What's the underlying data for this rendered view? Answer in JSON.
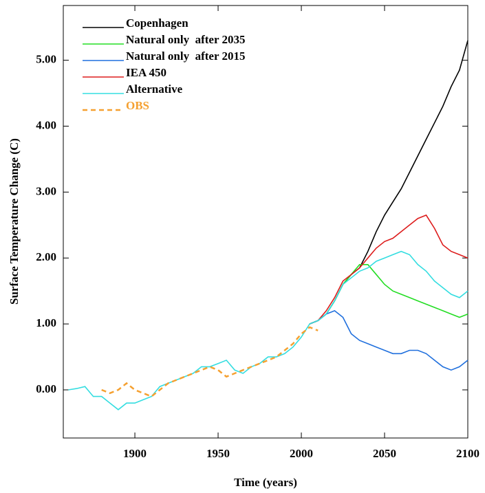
{
  "chart_data": {
    "type": "line",
    "x_label": "Time (years)",
    "y_label": "Surface Temperature Change (C)",
    "xlim": [
      1857,
      2100
    ],
    "ylim": [
      -0.73,
      5.83
    ],
    "xticks": [
      1900,
      1950,
      2000,
      2050,
      2100
    ],
    "yticks": [
      {
        "value": 0,
        "label": "0.00"
      },
      {
        "value": 1,
        "label": "1.00"
      },
      {
        "value": 2,
        "label": "2.00"
      },
      {
        "value": 3,
        "label": "3.00"
      },
      {
        "value": 4,
        "label": "4.00"
      },
      {
        "value": 5,
        "label": "5.00"
      }
    ],
    "x": [
      1860,
      1865,
      1870,
      1875,
      1880,
      1885,
      1890,
      1895,
      1900,
      1905,
      1910,
      1915,
      1920,
      1925,
      1930,
      1935,
      1940,
      1945,
      1950,
      1955,
      1960,
      1965,
      1970,
      1975,
      1980,
      1985,
      1990,
      1995,
      2000,
      2005,
      2010,
      2015,
      2020,
      2025,
      2030,
      2035,
      2040,
      2045,
      2050,
      2055,
      2060,
      2065,
      2070,
      2075,
      2080,
      2085,
      2090,
      2095,
      2100
    ],
    "series": [
      {
        "name": "Copenhagen",
        "color": "#000000",
        "dash": "solid",
        "values": [
          null,
          null,
          null,
          null,
          null,
          null,
          null,
          null,
          null,
          null,
          null,
          null,
          null,
          null,
          null,
          null,
          null,
          null,
          null,
          null,
          null,
          null,
          null,
          null,
          null,
          null,
          null,
          null,
          null,
          1.0,
          1.05,
          1.15,
          1.35,
          1.6,
          1.75,
          1.85,
          2.1,
          2.4,
          2.65,
          2.85,
          3.05,
          3.3,
          3.55,
          3.8,
          4.05,
          4.3,
          4.6,
          4.85,
          5.3
        ]
      },
      {
        "name": "Natural only  after 2035",
        "color": "#22dd22",
        "dash": "solid",
        "values": [
          null,
          null,
          null,
          null,
          null,
          null,
          null,
          null,
          null,
          null,
          null,
          null,
          null,
          null,
          null,
          null,
          null,
          null,
          null,
          null,
          null,
          null,
          null,
          null,
          null,
          null,
          null,
          null,
          null,
          1.0,
          1.05,
          1.15,
          1.35,
          1.6,
          1.75,
          1.9,
          1.9,
          1.75,
          1.6,
          1.5,
          1.45,
          1.4,
          1.35,
          1.3,
          1.25,
          1.2,
          1.15,
          1.1,
          1.15
        ]
      },
      {
        "name": "Natural only  after 2015",
        "color": "#1f6fdd",
        "dash": "solid",
        "values": [
          null,
          null,
          null,
          null,
          null,
          null,
          null,
          null,
          null,
          null,
          null,
          null,
          null,
          null,
          null,
          null,
          null,
          null,
          null,
          null,
          null,
          null,
          null,
          null,
          null,
          null,
          null,
          null,
          null,
          1.0,
          1.05,
          1.15,
          1.2,
          1.1,
          0.85,
          0.75,
          0.7,
          0.65,
          0.6,
          0.55,
          0.55,
          0.6,
          0.6,
          0.55,
          0.45,
          0.35,
          0.3,
          0.35,
          0.45
        ]
      },
      {
        "name": "IEA 450",
        "color": "#dd1c1c",
        "dash": "solid",
        "values": [
          null,
          null,
          null,
          null,
          null,
          null,
          null,
          null,
          null,
          null,
          null,
          null,
          null,
          null,
          null,
          null,
          null,
          null,
          null,
          null,
          null,
          null,
          null,
          null,
          null,
          null,
          null,
          null,
          null,
          1.0,
          1.05,
          1.2,
          1.4,
          1.65,
          1.75,
          1.85,
          2.0,
          2.15,
          2.25,
          2.3,
          2.4,
          2.5,
          2.6,
          2.65,
          2.45,
          2.2,
          2.1,
          2.05,
          2.0
        ]
      },
      {
        "name": "Alternative",
        "color": "#33dde0",
        "dash": "solid",
        "values": [
          0.0,
          0.02,
          0.05,
          -0.1,
          -0.1,
          -0.2,
          -0.3,
          -0.2,
          -0.2,
          -0.15,
          -0.1,
          0.05,
          0.1,
          0.15,
          0.2,
          0.25,
          0.35,
          0.35,
          0.4,
          0.45,
          0.3,
          0.25,
          0.35,
          0.4,
          0.5,
          0.5,
          0.55,
          0.65,
          0.8,
          1.0,
          1.05,
          1.15,
          1.35,
          1.6,
          1.7,
          1.8,
          1.85,
          1.95,
          2.0,
          2.05,
          2.1,
          2.05,
          1.9,
          1.8,
          1.65,
          1.55,
          1.45,
          1.4,
          1.5
        ]
      },
      {
        "name": "OBS",
        "color": "#f5a030",
        "dash": "dashed",
        "values": [
          null,
          null,
          null,
          null,
          0.0,
          -0.05,
          0.0,
          0.1,
          0.0,
          -0.05,
          -0.1,
          0.0,
          0.1,
          0.15,
          0.2,
          0.25,
          0.3,
          0.35,
          0.3,
          0.2,
          0.25,
          0.3,
          0.35,
          0.4,
          0.45,
          0.5,
          0.6,
          0.7,
          0.85,
          0.95,
          0.9,
          null,
          null,
          null,
          null,
          null,
          null,
          null,
          null,
          null,
          null,
          null,
          null,
          null,
          null,
          null,
          null,
          null,
          null
        ]
      }
    ]
  }
}
